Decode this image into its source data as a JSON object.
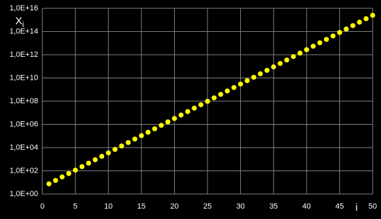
{
  "chart_data": {
    "type": "scatter",
    "ylabel": "X",
    "ylabel_sub": "i",
    "xlabel": "i",
    "x": [
      1,
      2,
      3,
      4,
      5,
      6,
      7,
      8,
      9,
      10,
      11,
      12,
      13,
      14,
      15,
      16,
      17,
      18,
      19,
      20,
      21,
      22,
      23,
      24,
      25,
      26,
      27,
      28,
      29,
      30,
      31,
      32,
      33,
      34,
      35,
      36,
      37,
      38,
      39,
      40,
      41,
      42,
      43,
      44,
      45,
      46,
      47,
      48,
      49,
      50
    ],
    "series": [
      {
        "color": "#ffff00",
        "values": [
          7.6,
          15,
          30,
          59,
          116,
          230,
          455,
          900,
          1780,
          3520,
          6970,
          13800,
          27300,
          54000,
          107000,
          211000,
          418000,
          826000,
          1640000,
          3240000,
          6400000,
          12700000,
          25100000,
          49500000,
          98000000,
          194000000,
          384000000,
          759000000,
          1500000000,
          2970000000,
          5870000000,
          11600000000,
          23000000000,
          45500000000,
          90000000000,
          178000000000,
          352000000000,
          697000000000,
          1380000000000,
          2730000000000,
          5400000000000,
          10700000000000,
          21100000000000,
          41800000000000,
          82600000000000,
          164000000000000,
          324000000000000,
          640000000000000,
          1270000000000000,
          2510000000000000
        ]
      }
    ],
    "xlim": [
      0,
      50
    ],
    "xticks": [
      0,
      5,
      10,
      15,
      20,
      25,
      30,
      35,
      40,
      45,
      50
    ],
    "ylim": [
      1,
      1e+16
    ],
    "ylog": true,
    "yticks": [
      {
        "value": 1,
        "label": "1,0E+00"
      },
      {
        "value": 100,
        "label": "1,0E+02"
      },
      {
        "value": 10000,
        "label": "1,0E+04"
      },
      {
        "value": 1000000,
        "label": "1,0E+06"
      },
      {
        "value": 100000000,
        "label": "1,0E+08"
      },
      {
        "value": 10000000000,
        "label": "1,0E+10"
      },
      {
        "value": 1000000000000,
        "label": "1,0E+12"
      },
      {
        "value": 100000000000000,
        "label": "1,0E+14"
      },
      {
        "value": 1e+16,
        "label": "1,0E+16"
      }
    ],
    "grid": true,
    "background": "#000000"
  }
}
